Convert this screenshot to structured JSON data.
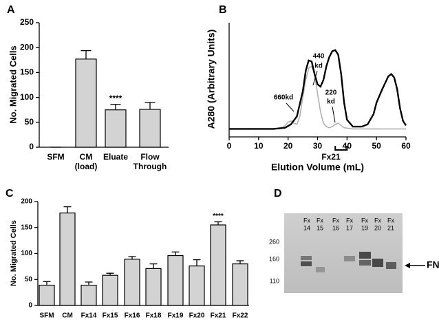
{
  "chart_data": [
    {
      "panel": "A",
      "type": "bar",
      "categories": [
        "SFM",
        [
          "CM",
          "(load)"
        ],
        "Eluate",
        [
          "Flow",
          "Through"
        ]
      ],
      "values": [
        0,
        177,
        75,
        76
      ],
      "errors": [
        0,
        17,
        11,
        14
      ],
      "color": "#d3d3d3",
      "ylim": [
        0,
        250
      ],
      "yticks": [
        0,
        50,
        100,
        150,
        200,
        250
      ],
      "ylabel": "No. Migrated Cells",
      "annotation": "****"
    },
    {
      "panel": "B",
      "type": "line",
      "xlabel": "Elution Volume (mL)",
      "ylabel": "A280 (Arbitrary Units)",
      "xlim": [
        0,
        60
      ],
      "xticks": [
        0,
        10,
        20,
        30,
        40,
        50,
        60
      ],
      "ylim": [
        0,
        100
      ],
      "series": [
        {
          "color": "#000000",
          "x": [
            0,
            15,
            19,
            21,
            23,
            25,
            26,
            27,
            28,
            29,
            30,
            31,
            32,
            33,
            34,
            35,
            36,
            37,
            38,
            39,
            40,
            42,
            45,
            47,
            49,
            50,
            52,
            54,
            55,
            56,
            57,
            58,
            59,
            60
          ],
          "values": [
            7,
            7,
            8,
            11,
            18,
            40,
            58,
            67,
            66,
            55,
            46,
            44,
            50,
            62,
            70,
            75,
            76,
            72,
            55,
            30,
            15,
            9,
            9,
            11,
            20,
            30,
            42,
            53,
            55,
            52,
            42,
            25,
            14,
            10
          ]
        },
        {
          "color": "#b0b0b0",
          "x": [
            0,
            15,
            18,
            19,
            20,
            21,
            22,
            23,
            24,
            25,
            26,
            27,
            28,
            29,
            30,
            31,
            32,
            33,
            34,
            35,
            36,
            37,
            38,
            39,
            42,
            60
          ],
          "values": [
            7,
            7,
            8,
            10,
            13,
            14,
            12,
            11,
            18,
            35,
            50,
            60,
            62,
            55,
            38,
            22,
            12,
            9,
            8,
            9,
            11,
            12,
            10,
            8,
            7,
            7
          ]
        }
      ],
      "annotations": [
        "660kd",
        [
          "440",
          "kd"
        ],
        [
          "220",
          "kd"
        ],
        "Fx21"
      ]
    },
    {
      "panel": "C",
      "type": "bar",
      "categories": [
        "SFM",
        "CM",
        "Fx14",
        "Fx15",
        "Fx16",
        "Fx18",
        "Fx19",
        "Fx20",
        "Fx21",
        "Fx22"
      ],
      "values": [
        39,
        178,
        39,
        58,
        89,
        71,
        96,
        76,
        155,
        80
      ],
      "errors": [
        7,
        12,
        6,
        4,
        5,
        9,
        7,
        12,
        6,
        6
      ],
      "color": "#d3d3d3",
      "ylim": [
        0,
        200
      ],
      "yticks": [
        0,
        50,
        100,
        150,
        200
      ],
      "ylabel": "No. Migrated Cells",
      "annotation": "****"
    }
  ],
  "gel": {
    "panel": "D",
    "lanes": [
      [
        "Fx",
        "14"
      ],
      [
        "Fx",
        "15"
      ],
      [
        "Fx",
        "16"
      ],
      [
        "Fx",
        "17"
      ],
      [
        "Fx",
        "19"
      ],
      [
        "Fx",
        "20"
      ],
      [
        "Fx",
        "21"
      ]
    ],
    "markers": [
      "260",
      "160",
      "110"
    ],
    "band_label": "FN"
  }
}
